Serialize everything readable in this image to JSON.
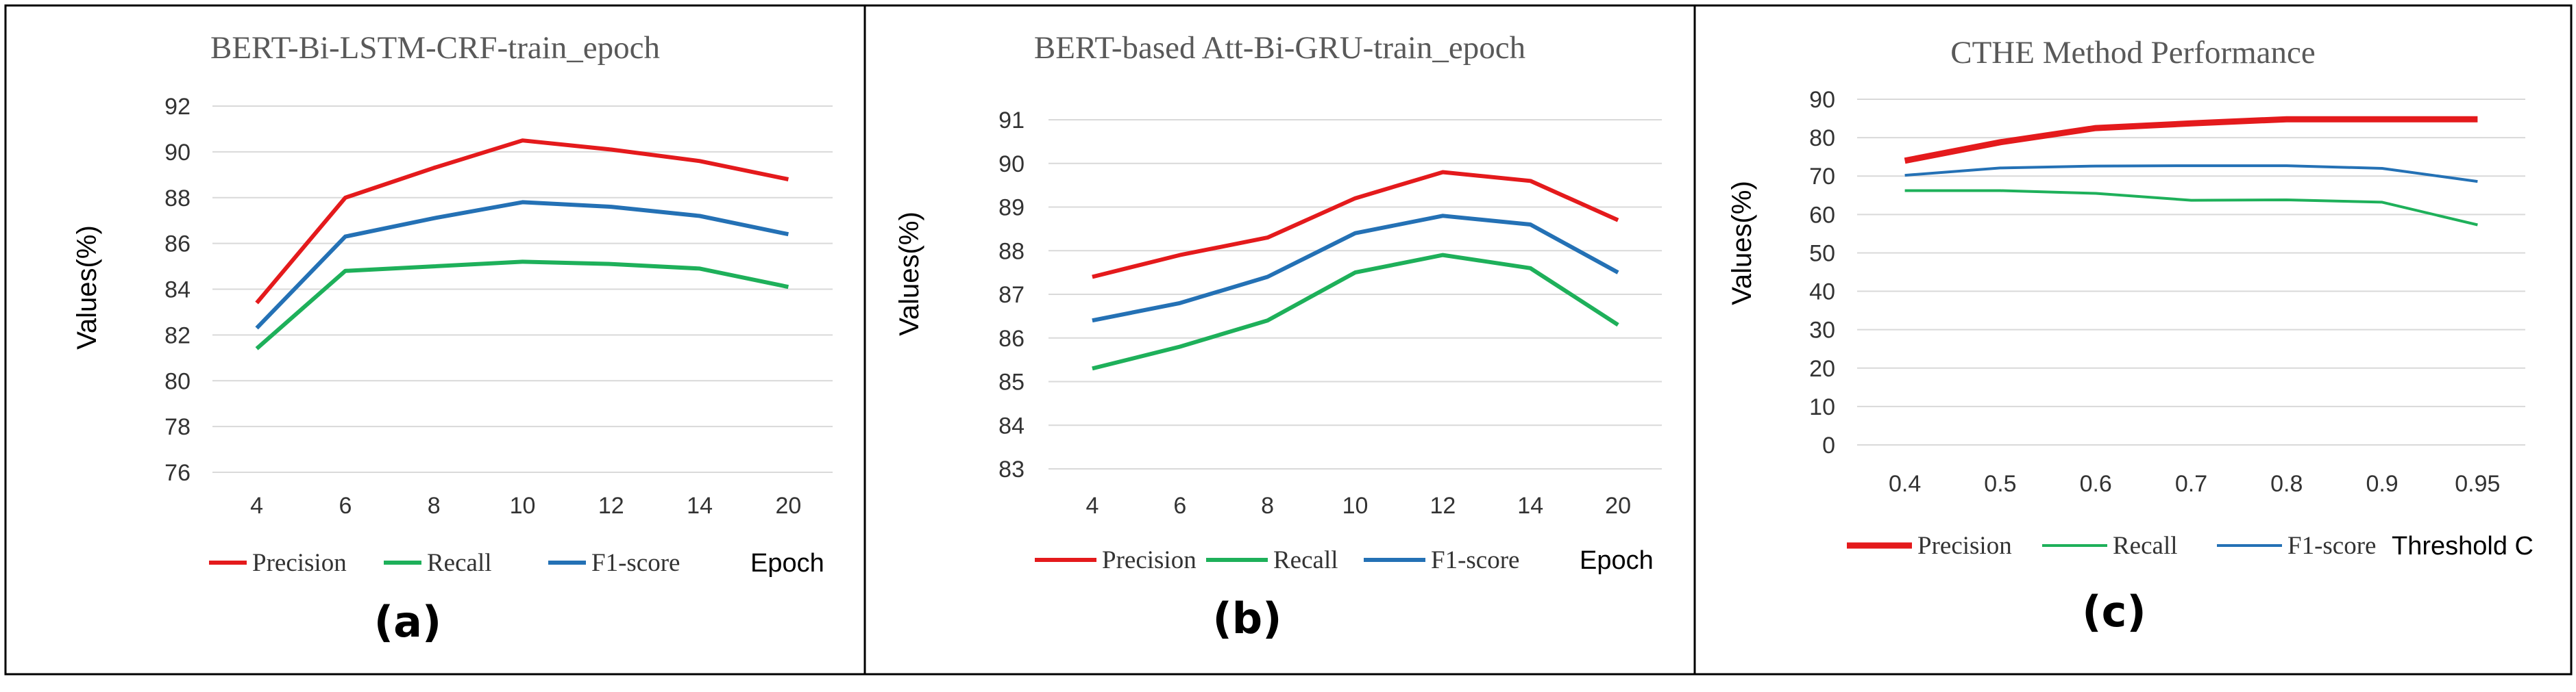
{
  "chart_data": [
    {
      "type": "line",
      "panel_label": "(a)",
      "title": "BERT-Bi-LSTM-CRF-train_epoch",
      "ylabel": "Values(%)",
      "xlabel": "Epoch",
      "categories": [
        "4",
        "6",
        "8",
        "10",
        "12",
        "14",
        "20"
      ],
      "yticks": [
        76,
        78,
        80,
        82,
        84,
        86,
        88,
        90,
        92
      ],
      "ylim": [
        76,
        92
      ],
      "grid": true,
      "legend_position": "bottom",
      "series": [
        {
          "name": "Precision",
          "color": "#e41a1c",
          "values": [
            83.4,
            88.0,
            89.3,
            90.5,
            90.1,
            89.6,
            88.8
          ]
        },
        {
          "name": "Recall",
          "color": "#1eb05a",
          "values": [
            81.4,
            84.8,
            85.0,
            85.2,
            85.1,
            84.9,
            84.1
          ]
        },
        {
          "name": "F1-score",
          "color": "#2471b5",
          "values": [
            82.3,
            86.3,
            87.1,
            87.8,
            87.6,
            87.2,
            86.4
          ]
        }
      ]
    },
    {
      "type": "line",
      "panel_label": "(b)",
      "title": "BERT-based Att-Bi-GRU-train_epoch",
      "ylabel": "Values(%)",
      "xlabel": "Epoch",
      "categories": [
        "4",
        "6",
        "8",
        "10",
        "12",
        "14",
        "20"
      ],
      "yticks": [
        83,
        84,
        85,
        86,
        87,
        88,
        89,
        90,
        91
      ],
      "ylim": [
        83,
        91
      ],
      "grid": true,
      "legend_position": "bottom",
      "series": [
        {
          "name": "Precision",
          "color": "#e41a1c",
          "values": [
            87.4,
            87.9,
            88.3,
            89.2,
            89.8,
            89.6,
            88.7
          ]
        },
        {
          "name": "Recall",
          "color": "#1eb05a",
          "values": [
            85.3,
            85.8,
            86.4,
            87.5,
            87.9,
            87.6,
            86.3
          ]
        },
        {
          "name": "F1-score",
          "color": "#2471b5",
          "values": [
            86.4,
            86.8,
            87.4,
            88.4,
            88.8,
            88.6,
            87.5
          ]
        }
      ]
    },
    {
      "type": "line",
      "panel_label": "(c)",
      "title": "CTHE Method  Performance",
      "ylabel": "Values(%)",
      "xlabel": "Threshold C",
      "categories": [
        "0.4",
        "0.5",
        "0.6",
        "0.7",
        "0.8",
        "0.9",
        "0.95"
      ],
      "yticks": [
        0,
        10,
        20,
        30,
        40,
        50,
        60,
        70,
        80,
        90
      ],
      "ylim": [
        0,
        90
      ],
      "grid": true,
      "legend_position": "bottom",
      "series": [
        {
          "name": "Precision",
          "color": "#e41a1c",
          "values": [
            74,
            78.8,
            82.5,
            83.7,
            84.8,
            84.8,
            84.8
          ]
        },
        {
          "name": "Recall",
          "color": "#1eb05a",
          "values": [
            66.2,
            66.2,
            65.5,
            63.7,
            63.8,
            63.2,
            57.3
          ]
        },
        {
          "name": "F1-score",
          "color": "#2471b5",
          "values": [
            70.2,
            72.1,
            72.6,
            72.7,
            72.7,
            72.0,
            68.6
          ]
        }
      ]
    }
  ]
}
